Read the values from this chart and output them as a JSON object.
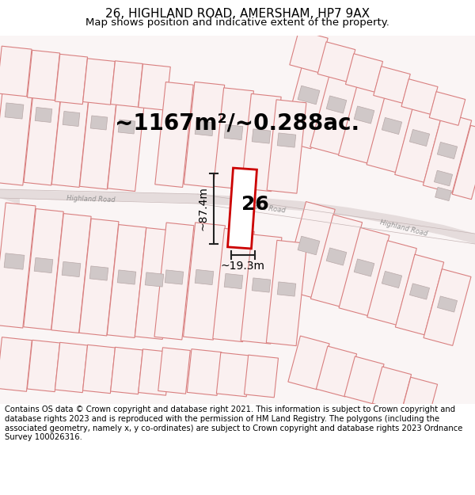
{
  "title": "26, HIGHLAND ROAD, AMERSHAM, HP7 9AX",
  "subtitle": "Map shows position and indicative extent of the property.",
  "area_text": "~1167m²/~0.288ac.",
  "dim_height": "~87.4m",
  "dim_width": "~19.3m",
  "label_number": "26",
  "footer": "Contains OS data © Crown copyright and database right 2021. This information is subject to Crown copyright and database rights 2023 and is reproduced with the permission of HM Land Registry. The polygons (including the associated geometry, namely x, y co-ordinates) are subject to Crown copyright and database rights 2023 Ordnance Survey 100026316.",
  "bg_color": "#faf5f5",
  "road_band_color": "#e8e0e0",
  "road_edge_color": "#c8b8b8",
  "plot_edge_color": "#d98080",
  "plot_face_color": "#faf0f0",
  "building_face_color": "#d0c8c8",
  "building_edge_color": "#b8a8a8",
  "prop_edge_color": "#cc0000",
  "prop_face_color": "#ffffff",
  "dim_color": "#222222",
  "road_text_color": "#909090",
  "title_fontsize": 11,
  "subtitle_fontsize": 9.5,
  "area_fontsize": 20,
  "dim_fontsize": 10,
  "label_fontsize": 18,
  "footer_fontsize": 7.2,
  "road_fontsize": 6
}
